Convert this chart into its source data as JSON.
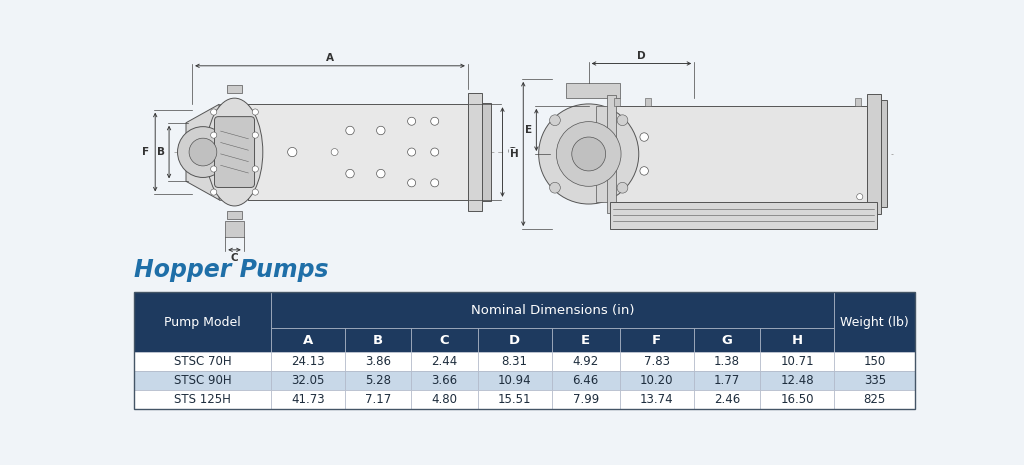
{
  "title": "Hopper Pumps",
  "title_color": "#1f6fa8",
  "bg_color": "#f0f4f8",
  "table_header_bg": "#1e3a5f",
  "table_header_text": "#ffffff",
  "table_row1_bg": "#ffffff",
  "table_row2_bg": "#c8d8e8",
  "table_row3_bg": "#ffffff",
  "table_text_color": "#1e2d3d",
  "col_header": "Pump Model",
  "dim_header": "Nominal Dimensions (in)",
  "weight_header": "Weight (lb)",
  "sub_cols": [
    "A",
    "B",
    "C",
    "D",
    "E",
    "F",
    "G",
    "H"
  ],
  "rows": [
    [
      "STSC 70H",
      "24.13",
      "3.86",
      "2.44",
      "8.31",
      "4.92",
      "7.83",
      "1.38",
      "10.71",
      "150"
    ],
    [
      "STSC 90H",
      "32.05",
      "5.28",
      "3.66",
      "10.94",
      "6.46",
      "10.20",
      "1.77",
      "12.48",
      "335"
    ],
    [
      "STS 125H",
      "41.73",
      "7.17",
      "4.80",
      "15.51",
      "7.99",
      "13.74",
      "2.46",
      "16.50",
      "825"
    ]
  ]
}
